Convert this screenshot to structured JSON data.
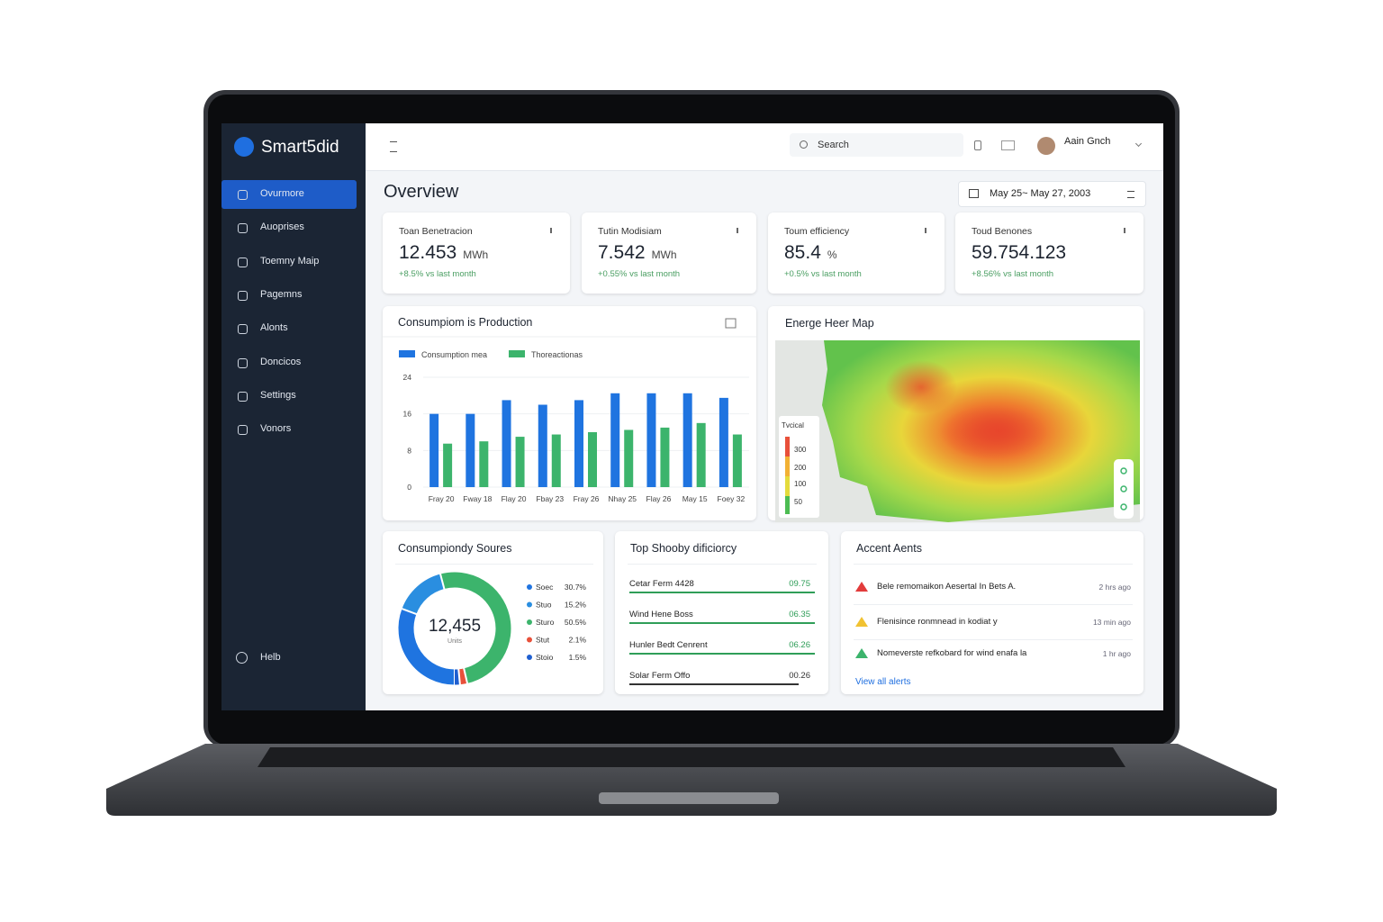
{
  "sidebar": {
    "brand": "Smart5did",
    "nav": [
      "Ovurmore",
      "Auoprises",
      "Toemny Maip",
      "Pagemns",
      "Alonts",
      "Doncicos",
      "Settings",
      "Vonors"
    ],
    "help": "Helb"
  },
  "topbar": {
    "search": "Search",
    "user": "Aain Gnch"
  },
  "header": {
    "title": "Overview",
    "date_range": "May 25~ May 27, 2003"
  },
  "kpis": [
    {
      "label": "Toan Benetracion",
      "value": "12.453",
      "unit": "MWh",
      "change": "+8.5% vs last month"
    },
    {
      "label": "Tutin Modisiam",
      "value": "7.542",
      "unit": "MWh",
      "change": "+0.55% vs last month"
    },
    {
      "label": "Toum efficiency",
      "value": "85.4",
      "unit": "%",
      "change": "+0.5% vs last month"
    },
    {
      "label": "Toud Benones",
      "value": "59.754.123",
      "change": "+8.56% vs last month"
    }
  ],
  "bar_chart": {
    "type": "bar",
    "title": "Consumpiom is Production",
    "categories": [
      "Fray 20",
      "Fway 18",
      "Flay 20",
      "Fbay 23",
      "Fray 26",
      "Nhay 25",
      "Flay 26",
      "May 15",
      "Foey 32"
    ],
    "series": [
      {
        "name": "Consumption mea",
        "color": "#1f74e0",
        "values": [
          16,
          16,
          19,
          18,
          19,
          20.5,
          20.5,
          20.5,
          19.5
        ]
      },
      {
        "name": "Thoreactionas",
        "color": "#3cb46c",
        "values": [
          9.5,
          10,
          11,
          11.5,
          12,
          12.5,
          13,
          14,
          11.5
        ]
      }
    ],
    "ylim": [
      0,
      24
    ],
    "yticks": [
      0,
      8,
      16,
      24
    ],
    "grid": true
  },
  "heatmap": {
    "title": "Energe Heer Map",
    "legend_title": "Tvcical",
    "legend_labels": [
      "300",
      "200",
      "100",
      "50"
    ]
  },
  "donut": {
    "type": "pie",
    "title": "Consumpiondy Soures",
    "center_value": "12,455",
    "center_label": "Units",
    "categories": [
      "Soec",
      "Stuo",
      "Sturo",
      "Stut",
      "Stoio"
    ],
    "colors": [
      "#1f74e0",
      "#2a8ee0",
      "#3cb46c",
      "#e8503a",
      "#1f5fd0"
    ],
    "values": [
      30.7,
      15.2,
      50.5,
      2.1,
      1.5
    ],
    "value_labels": [
      "30.7%",
      "15.2%",
      "50.5%",
      "2.1%",
      "1.5%"
    ]
  },
  "efficiency": {
    "title": "Top Shooby dificiorcy",
    "rows": [
      {
        "name": "Cetar Ferm 4428",
        "value": "09.75"
      },
      {
        "name": "Wind Hene Boss",
        "value": "06.35"
      },
      {
        "name": "Hunler Bedt Cenrent",
        "value": "06.26"
      },
      {
        "name": "Solar Ferm Offo",
        "value": "00.26"
      }
    ]
  },
  "alerts": {
    "title": "Accent Aents",
    "items": [
      {
        "text": "Bele remomaikon Aesertal In Bets A.",
        "time": "2 hrs ago"
      },
      {
        "text": "Flenisince ronmnead in kodiat y",
        "time": "13 min ago"
      },
      {
        "text": "Nomeverste refkobard for wind enafa la",
        "time": "1 hr ago"
      }
    ],
    "link": "View all alerts"
  }
}
